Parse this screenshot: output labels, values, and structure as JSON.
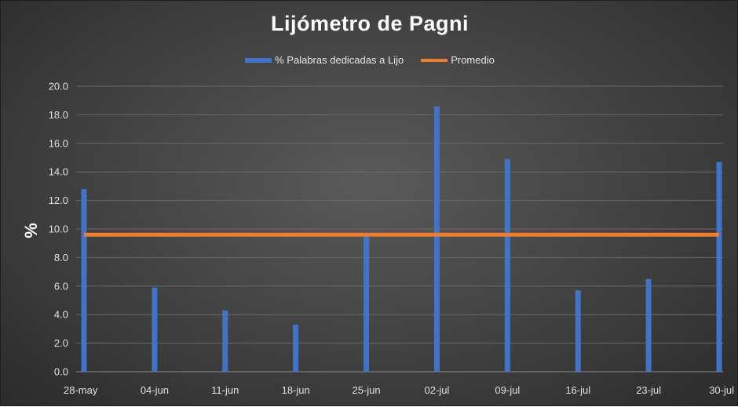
{
  "chart_data": {
    "type": "bar",
    "title": "Lijómetro de Pagni",
    "xlabel": "",
    "ylabel": "%",
    "ylim": [
      0,
      20
    ],
    "ytick_labels": [
      "0.0",
      "2.0",
      "4.0",
      "6.0",
      "8.0",
      "10.0",
      "12.0",
      "14.0",
      "16.0",
      "18.0",
      "20.0"
    ],
    "grid": true,
    "legend_position": "top-center",
    "categories": [
      "28-may",
      "04-jun",
      "11-jun",
      "18-jun",
      "25-jun",
      "02-jul",
      "09-jul",
      "16-jul",
      "23-jul",
      "30-jul"
    ],
    "series": [
      {
        "name": "% Palabras dedicadas a Lijo",
        "type": "bar",
        "color": "#4472c4",
        "values": [
          12.8,
          5.9,
          4.3,
          3.3,
          9.5,
          18.6,
          14.9,
          5.7,
          6.5,
          14.7
        ]
      },
      {
        "name": "Promedio",
        "type": "line",
        "color": "#ed7d31",
        "values": [
          9.6,
          9.6,
          9.6,
          9.6,
          9.6,
          9.6,
          9.6,
          9.6,
          9.6,
          9.6
        ]
      }
    ]
  },
  "colors": {
    "grid": "#6a6a6a",
    "axis": "#8a8a8a"
  }
}
